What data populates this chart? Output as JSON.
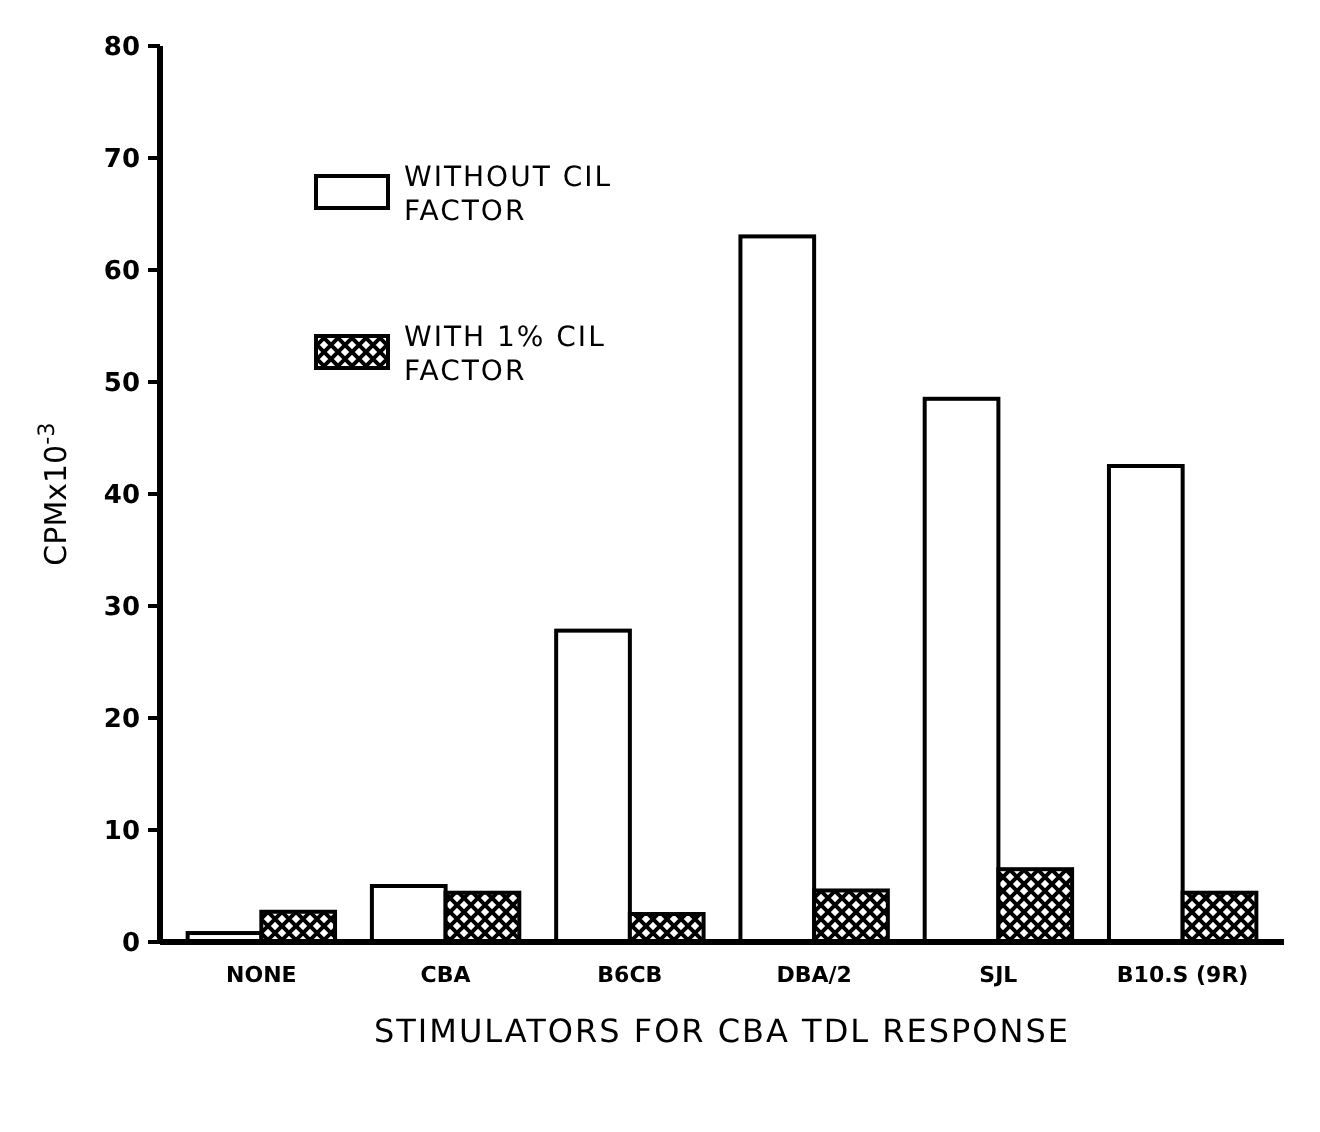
{
  "chart_data": {
    "type": "bar",
    "xlabel": "STIMULATORS FOR CBA TDL RESPONSE",
    "ylabel": "CPMx10$^{-3}$",
    "categories": [
      "NONE",
      "CBA",
      "B6CB",
      "DBA/2",
      "SJL",
      "B10.S (9R)"
    ],
    "series": [
      {
        "name": "WITHOUT CIL FACTOR",
        "color": "#ffffff",
        "values": [
          0.8,
          5,
          27.8,
          63,
          48.5,
          42.5
        ]
      },
      {
        "name": "WITH 1% CIL FACTOR",
        "color": "#000000",
        "values": [
          2.7,
          4.4,
          2.5,
          4.6,
          6.5,
          4.4
        ]
      }
    ],
    "ylim": [
      0,
      80
    ],
    "yticks": [
      0,
      10,
      20,
      30,
      40,
      50,
      60,
      70,
      80
    ],
    "grid": false,
    "legend": "top left"
  }
}
